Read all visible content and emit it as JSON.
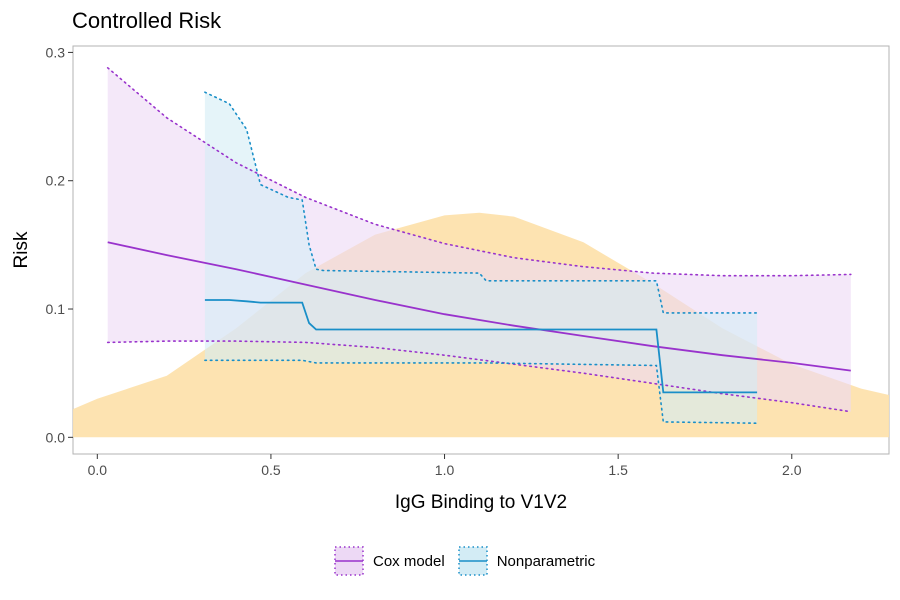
{
  "chart_data": {
    "type": "line",
    "title": "Controlled Risk",
    "xlabel": "IgG Binding to V1V2",
    "ylabel": "Risk",
    "xlim": [
      -0.07,
      2.28
    ],
    "ylim": [
      -0.013,
      0.305
    ],
    "x_ticks": [
      "0.0",
      "0.5",
      "1.0",
      "1.5",
      "2.0"
    ],
    "y_ticks": [
      "0.0",
      "0.1",
      "0.2",
      "0.3"
    ],
    "grid": false,
    "legend_position": "bottom",
    "density": {
      "x": [
        -0.07,
        0.0,
        0.2,
        0.4,
        0.6,
        0.8,
        1.0,
        1.1,
        1.2,
        1.4,
        1.6,
        1.8,
        2.0,
        2.2,
        2.28
      ],
      "value": [
        0.022,
        0.03,
        0.048,
        0.085,
        0.128,
        0.158,
        0.173,
        0.175,
        0.172,
        0.152,
        0.12,
        0.085,
        0.057,
        0.038,
        0.033
      ],
      "color": "#FDE0A8"
    },
    "series": [
      {
        "name": "Cox model",
        "color": "#9933CC",
        "fill": "#EDD9F5",
        "x": [
          0.03,
          0.2,
          0.4,
          0.6,
          0.8,
          1.0,
          1.2,
          1.4,
          1.6,
          1.8,
          2.0,
          2.17
        ],
        "y": [
          0.152,
          0.142,
          0.131,
          0.119,
          0.107,
          0.096,
          0.087,
          0.079,
          0.071,
          0.064,
          0.058,
          0.052
        ],
        "lower": [
          0.074,
          0.075,
          0.075,
          0.074,
          0.07,
          0.064,
          0.057,
          0.05,
          0.042,
          0.034,
          0.027,
          0.02
        ],
        "upper": [
          0.288,
          0.249,
          0.214,
          0.187,
          0.166,
          0.151,
          0.14,
          0.133,
          0.128,
          0.126,
          0.126,
          0.127
        ]
      },
      {
        "name": "Nonparametric",
        "color": "#1A8FC8",
        "fill": "#D3ECF5",
        "x": [
          0.31,
          0.38,
          0.43,
          0.47,
          0.55,
          0.59,
          0.61,
          0.63,
          0.65,
          1.1,
          1.12,
          1.61,
          1.63,
          1.9
        ],
        "y": [
          0.107,
          0.107,
          0.106,
          0.105,
          0.105,
          0.105,
          0.089,
          0.084,
          0.084,
          0.084,
          0.084,
          0.084,
          0.035,
          0.035
        ],
        "lower": [
          0.06,
          0.06,
          0.06,
          0.06,
          0.06,
          0.06,
          0.059,
          0.058,
          0.058,
          0.058,
          0.058,
          0.056,
          0.012,
          0.011
        ],
        "upper": [
          0.269,
          0.26,
          0.24,
          0.197,
          0.187,
          0.185,
          0.15,
          0.131,
          0.13,
          0.128,
          0.122,
          0.122,
          0.097,
          0.097
        ]
      }
    ]
  }
}
